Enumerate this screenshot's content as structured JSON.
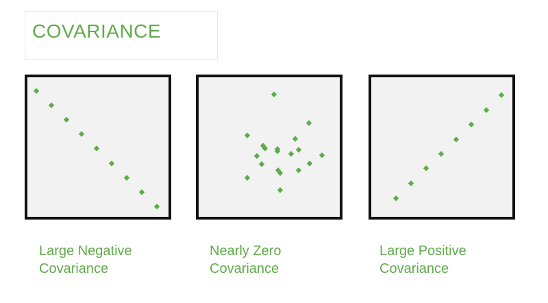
{
  "title": "COVARIANCE",
  "accent_color": "#5fab4b",
  "panels": [
    {
      "caption_line1": "Large Negative",
      "caption_line2": "Covariance",
      "points": [
        [
          13,
          20
        ],
        [
          35,
          41
        ],
        [
          57,
          62
        ],
        [
          79,
          83
        ],
        [
          101,
          104
        ],
        [
          123,
          126
        ],
        [
          145,
          147
        ],
        [
          167,
          168
        ],
        [
          189,
          189
        ]
      ]
    },
    {
      "caption_line1": "Nearly Zero",
      "caption_line2": "Covariance",
      "points": [
        [
          110,
          25
        ],
        [
          161,
          67
        ],
        [
          71,
          85
        ],
        [
          141,
          90
        ],
        [
          94,
          100
        ],
        [
          115,
          105
        ],
        [
          162,
          126
        ],
        [
          97,
          104
        ],
        [
          180,
          114
        ],
        [
          146,
          106
        ],
        [
          115,
          108
        ],
        [
          135,
          112
        ],
        [
          85,
          115
        ],
        [
          92,
          127
        ],
        [
          119,
          140
        ],
        [
          146,
          136
        ],
        [
          116,
          136
        ],
        [
          71,
          147
        ],
        [
          119,
          165
        ]
      ]
    },
    {
      "caption_line1": "Large Positive",
      "caption_line2": "Covariance",
      "points": [
        [
          36,
          177
        ],
        [
          58,
          155
        ],
        [
          80,
          133
        ],
        [
          102,
          112
        ],
        [
          124,
          91
        ],
        [
          146,
          69
        ],
        [
          168,
          48
        ],
        [
          190,
          26
        ]
      ]
    }
  ]
}
